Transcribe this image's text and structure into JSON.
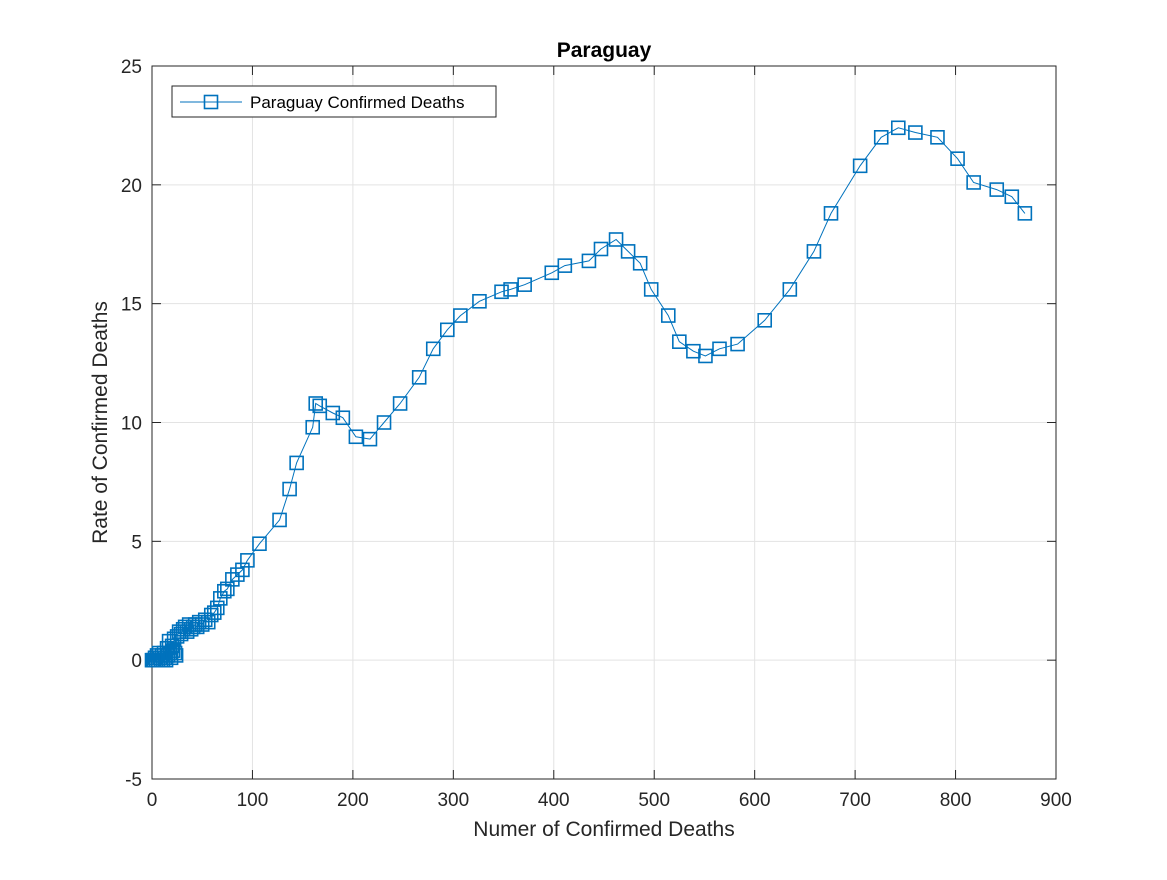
{
  "chart_data": {
    "type": "line",
    "title": "Paraguay",
    "xlabel": "Numer of Confirmed Deaths",
    "ylabel": "Rate of Confirmed Deaths",
    "xlim": [
      0,
      900
    ],
    "ylim": [
      -5,
      25
    ],
    "xticks": [
      "0",
      "100",
      "200",
      "300",
      "400",
      "500",
      "600",
      "700",
      "800",
      "900"
    ],
    "yticks": [
      "-5",
      "0",
      "5",
      "10",
      "15",
      "20",
      "25"
    ],
    "grid": true,
    "legend_position": "top-left",
    "marker": "square",
    "series": [
      {
        "name": "Paraguay Confirmed Deaths",
        "color": "#0072BD",
        "x": [
          0,
          1,
          2,
          3,
          4,
          5,
          6,
          7,
          8,
          9,
          10,
          11,
          12,
          13,
          14,
          15,
          16,
          17,
          18,
          19,
          20,
          21,
          22,
          23,
          24,
          25,
          27,
          29,
          31,
          33,
          35,
          37,
          39,
          41,
          43,
          45,
          47,
          50,
          53,
          56,
          59,
          62,
          65,
          68,
          72,
          75,
          80,
          85,
          90,
          95,
          107,
          127,
          137,
          144,
          160,
          163,
          167,
          180,
          190,
          203,
          217,
          231,
          247,
          266,
          280,
          294,
          307,
          326,
          348,
          357,
          371,
          398,
          411,
          435,
          447,
          462,
          474,
          486,
          497,
          514,
          525,
          539,
          551,
          565,
          583,
          610,
          635,
          659,
          676,
          705,
          726,
          743,
          760,
          782,
          802,
          818,
          841,
          856,
          869
        ],
        "y": [
          0,
          0,
          0,
          0.1,
          0,
          0.2,
          0,
          0.3,
          0.1,
          0,
          0.2,
          0,
          0.3,
          0.1,
          0,
          0.5,
          0.2,
          0.8,
          0.3,
          0.1,
          0.6,
          0.4,
          0.9,
          0.3,
          0.2,
          1.0,
          1.2,
          1.1,
          1.3,
          1.4,
          1.2,
          1.5,
          1.3,
          1.4,
          1.5,
          1.4,
          1.6,
          1.5,
          1.7,
          1.6,
          1.9,
          2.0,
          2.2,
          2.6,
          2.9,
          3.0,
          3.4,
          3.6,
          3.8,
          4.2,
          4.9,
          5.9,
          7.2,
          8.3,
          9.8,
          10.8,
          10.7,
          10.4,
          10.2,
          9.4,
          9.3,
          10.0,
          10.8,
          11.9,
          13.1,
          13.9,
          14.5,
          15.1,
          15.5,
          15.6,
          15.8,
          16.3,
          16.6,
          16.8,
          17.3,
          17.7,
          17.2,
          16.7,
          15.6,
          14.5,
          13.4,
          13.0,
          12.8,
          13.1,
          13.3,
          14.3,
          15.6,
          17.2,
          18.8,
          20.8,
          22.0,
          22.4,
          22.2,
          22.0,
          21.1,
          20.1,
          19.8,
          19.5,
          18.8
        ]
      }
    ]
  }
}
